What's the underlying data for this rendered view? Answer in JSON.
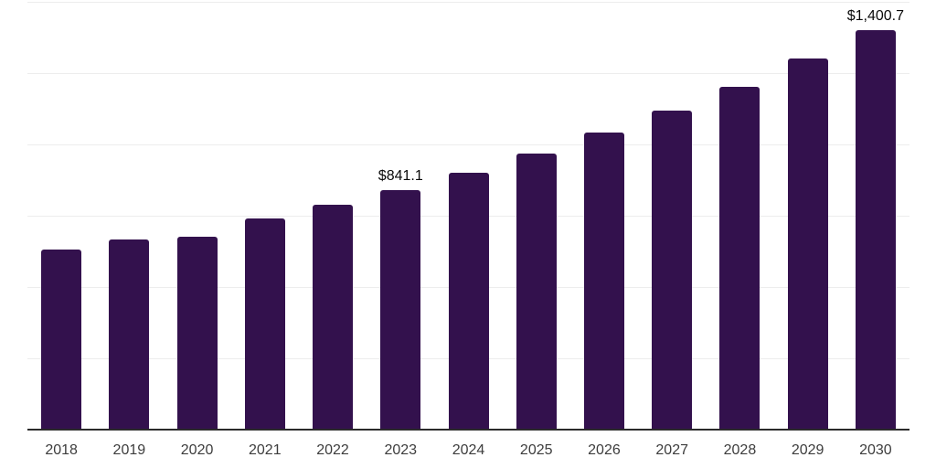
{
  "chart_data": {
    "type": "bar",
    "title": "",
    "xlabel": "",
    "ylabel": "",
    "ylim": [
      0,
      1500
    ],
    "gridline_step": 250,
    "grid": "horizontal",
    "legend": "none",
    "y_axis_labels_visible": false,
    "categories": [
      "2018",
      "2019",
      "2020",
      "2021",
      "2022",
      "2023",
      "2024",
      "2025",
      "2026",
      "2027",
      "2028",
      "2029",
      "2030"
    ],
    "values": [
      631,
      667,
      676,
      740,
      789,
      841.1,
      901,
      968,
      1043,
      1119,
      1203,
      1300,
      1400.7
    ],
    "bars": [
      {
        "year": "2018",
        "value": 631,
        "label": ""
      },
      {
        "year": "2019",
        "value": 667,
        "label": ""
      },
      {
        "year": "2020",
        "value": 676,
        "label": ""
      },
      {
        "year": "2021",
        "value": 740,
        "label": ""
      },
      {
        "year": "2022",
        "value": 789,
        "label": ""
      },
      {
        "year": "2023",
        "value": 841.1,
        "label": "$841.1"
      },
      {
        "year": "2024",
        "value": 901,
        "label": ""
      },
      {
        "year": "2025",
        "value": 968,
        "label": ""
      },
      {
        "year": "2026",
        "value": 1043,
        "label": ""
      },
      {
        "year": "2027",
        "value": 1119,
        "label": ""
      },
      {
        "year": "2028",
        "value": 1203,
        "label": ""
      },
      {
        "year": "2029",
        "value": 1300,
        "label": ""
      },
      {
        "year": "2030",
        "value": 1400.7,
        "label": "$1,400.7"
      }
    ],
    "colors": {
      "bar": "#33114d",
      "axis_line": "#2b2b2b",
      "gridline": "#ededed",
      "tick_label": "#3d3d3d",
      "data_label": "#0a0a0a",
      "background": "#ffffff"
    }
  }
}
